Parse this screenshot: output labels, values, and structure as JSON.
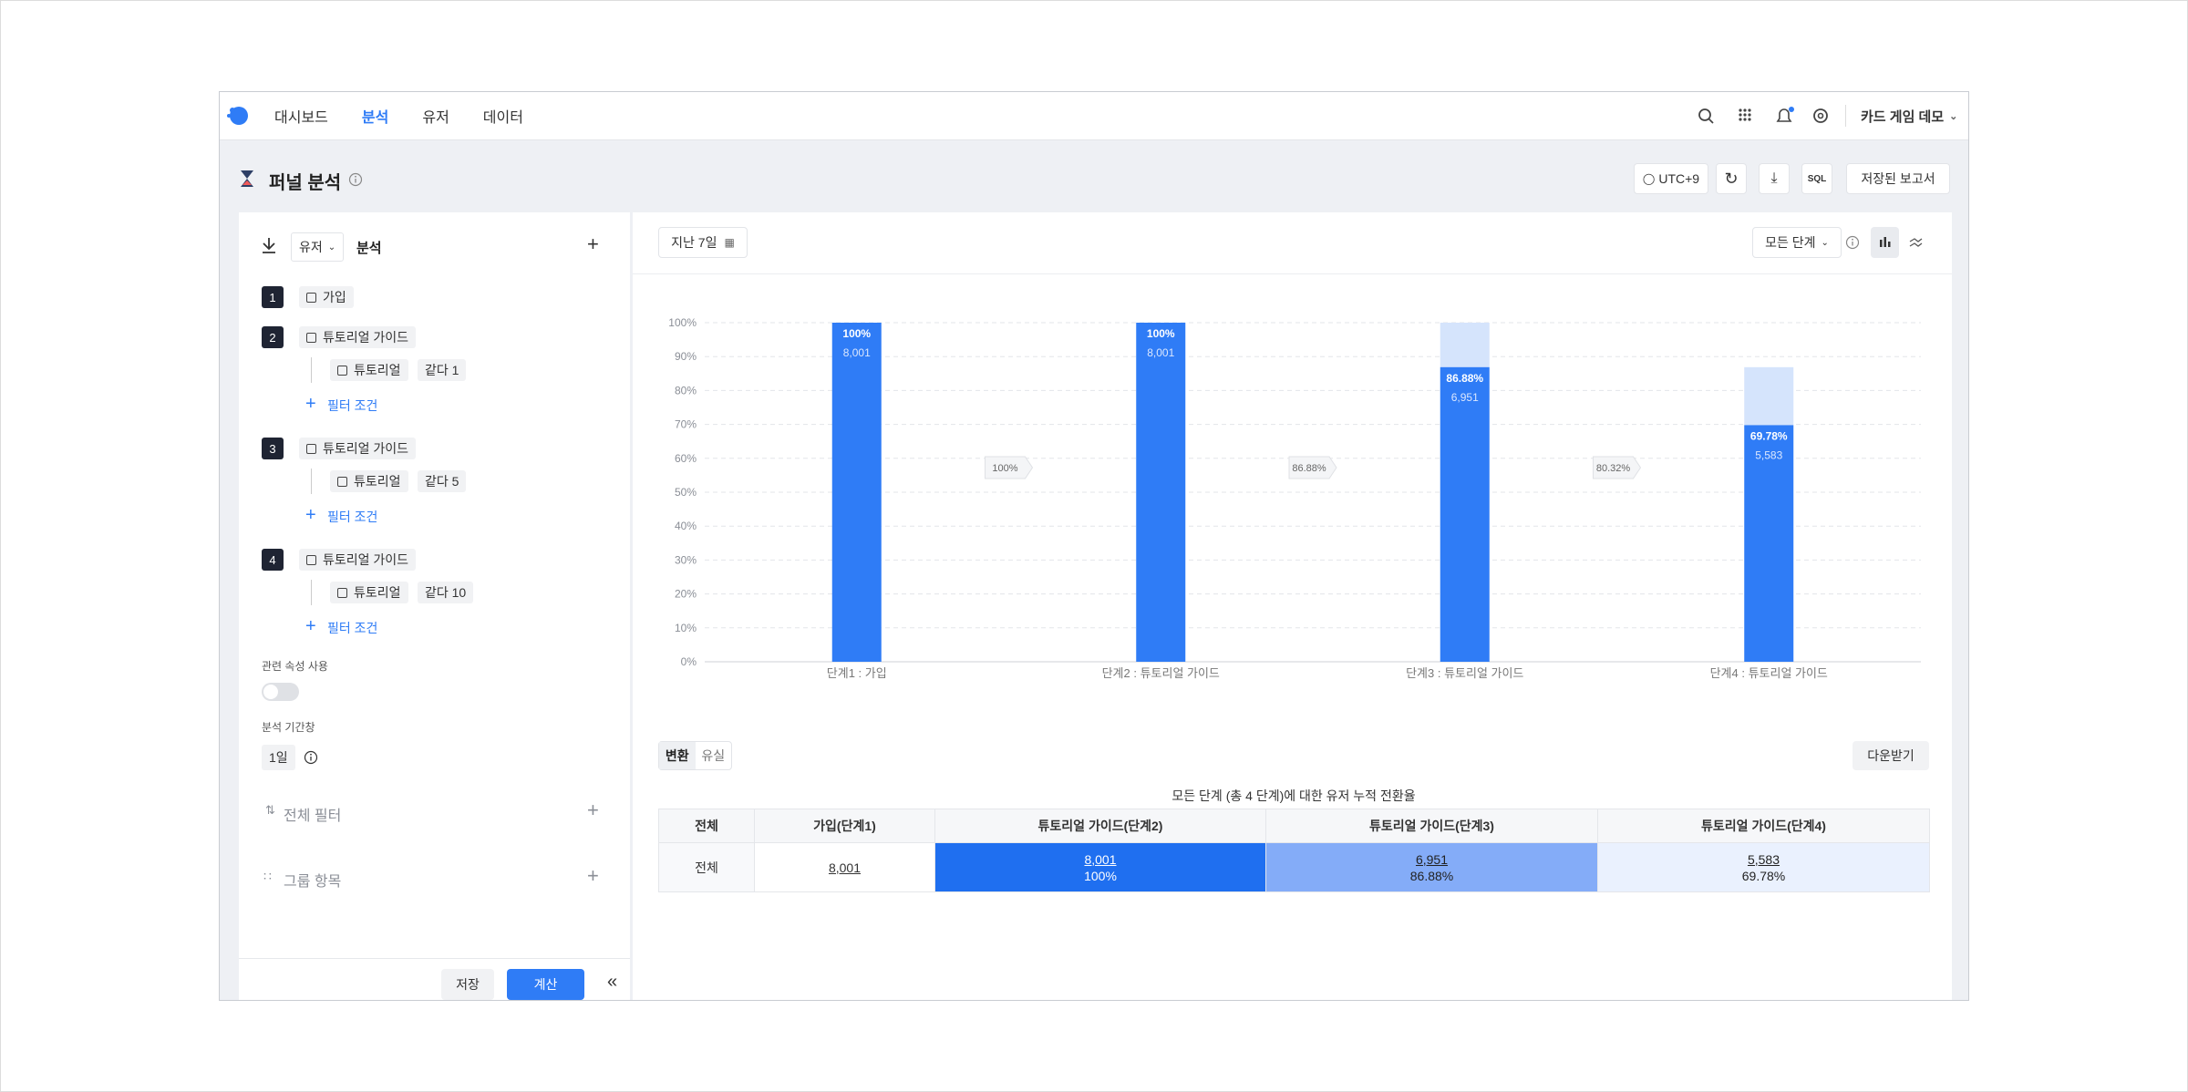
{
  "nav": {
    "items": [
      "대시보드",
      "분석",
      "유저",
      "데이터"
    ],
    "active": 1,
    "workspace": "카드 게임 데모"
  },
  "header": {
    "title": "퍼널 분석",
    "timezone": "UTC+9",
    "sql": "SQL",
    "saved_reports": "저장된 보고서"
  },
  "sidebar": {
    "subject": "유저",
    "subject_label": "분석",
    "steps": [
      {
        "number": 1,
        "event": "가입",
        "filters": []
      },
      {
        "number": 2,
        "event": "튜토리얼 가이드",
        "filters": [
          {
            "property": "튜토리얼",
            "condition": "같다 1"
          }
        ]
      },
      {
        "number": 3,
        "event": "튜토리얼 가이드",
        "filters": [
          {
            "property": "튜토리얼",
            "condition": "같다 5"
          }
        ]
      },
      {
        "number": 4,
        "event": "튜토리얼 가이드",
        "filters": [
          {
            "property": "튜토리얼",
            "condition": "같다 10"
          }
        ]
      }
    ],
    "add_filter": "필터 조건",
    "related_property": "관련 속성 사용",
    "window_label": "분석 기간창",
    "window": "1일",
    "global_filter": "전체 필터",
    "group_by": "그룹 항목",
    "save": "저장",
    "calculate": "계산"
  },
  "toolbar": {
    "date_range": "지난 7일",
    "step_selector": "모든 단계"
  },
  "chart_data": {
    "type": "bar",
    "categories": [
      "단계1 : 가입",
      "단계2 : 튜토리얼 가이드",
      "단계3 : 튜토리얼 가이드",
      "단계4 : 튜토리얼 가이드"
    ],
    "values": [
      100,
      100,
      86.88,
      69.78
    ],
    "value_labels": [
      "100%",
      "100%",
      "86.88%",
      "69.78%"
    ],
    "counts": [
      8001,
      8001,
      6951,
      5583
    ],
    "count_labels": [
      "8,001",
      "8,001",
      "6,951",
      "5,583"
    ],
    "step_rates": [
      100,
      86.88,
      80.32
    ],
    "step_rate_labels": [
      "100%",
      "86.88%",
      "80.32%"
    ],
    "color": "#2f7cf6",
    "dropoff_color": "#d5e4fc",
    "ylim": [
      0,
      100
    ],
    "yticks": [
      {
        "value": 0,
        "label": "0%"
      },
      {
        "value": 10,
        "label": "10%"
      },
      {
        "value": 20,
        "label": "20%"
      },
      {
        "value": 30,
        "label": "30%"
      },
      {
        "value": 40,
        "label": "40%"
      },
      {
        "value": 50,
        "label": "50%"
      },
      {
        "value": 60,
        "label": "60%"
      },
      {
        "value": 70,
        "label": "70%"
      },
      {
        "value": 80,
        "label": "80%"
      },
      {
        "value": 90,
        "label": "90%"
      },
      {
        "value": 100,
        "label": "100%"
      }
    ],
    "grid": true
  },
  "result": {
    "tabs": [
      "변환",
      "유실"
    ],
    "active_tab": 0,
    "download": "다운받기"
  },
  "table": {
    "title": "모든 단계 (총 4 단계)에 대한 유저 누적 전환율",
    "header": [
      "전체",
      "가입(단계1)",
      "튜토리얼 가이드(단계2)",
      "튜토리얼 가이드(단계3)",
      "튜토리얼 가이드(단계4)"
    ],
    "rows": [
      [
        "전체",
        "8,001",
        {
          "count": "8,001",
          "rate": "100%"
        },
        {
          "count": "6,951",
          "rate": "86.88%"
        },
        {
          "count": "5,583",
          "rate": "69.78%"
        }
      ]
    ]
  }
}
